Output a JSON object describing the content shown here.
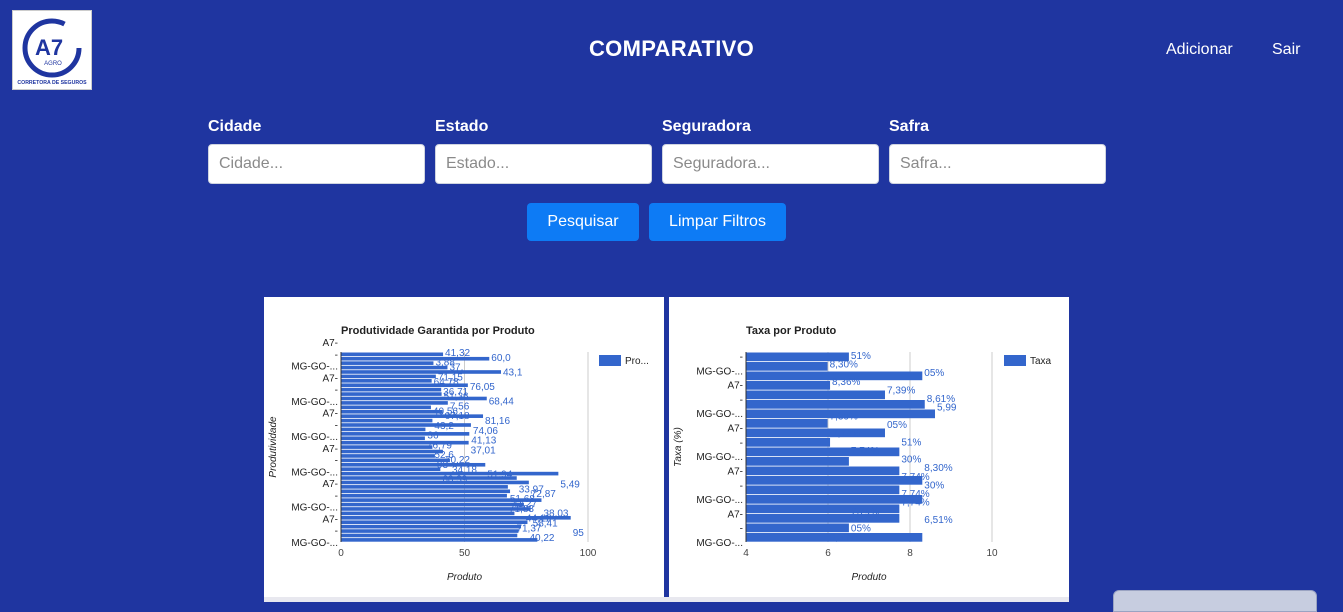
{
  "header": {
    "title": "COMPARATIVO",
    "nav": {
      "add": "Adicionar",
      "logout": "Sair"
    },
    "logo": {
      "main": "A7",
      "sub": "AGRO",
      "tagline": "CORRETORA DE SEGUROS"
    }
  },
  "filters": {
    "city": {
      "label": "Cidade",
      "placeholder": "Cidade..."
    },
    "state": {
      "label": "Estado",
      "placeholder": "Estado..."
    },
    "insurer": {
      "label": "Seguradora",
      "placeholder": "Seguradora..."
    },
    "harvest": {
      "label": "Safra",
      "placeholder": "Safra..."
    }
  },
  "actions": {
    "search": "Pesquisar",
    "clear": "Limpar Filtros"
  },
  "colors": {
    "background": "#1f35a0",
    "button": "#0d7bf5",
    "bar": "#3366cc"
  },
  "chart_data": [
    {
      "type": "bar",
      "orientation": "horizontal",
      "title": "Produtividade Garantida por Produto",
      "xlabel": "Produto",
      "ylabel": "Produtividade",
      "xlim": [
        0,
        100
      ],
      "x_ticks": [
        "0",
        "50",
        "100"
      ],
      "category_ticks": [
        "A7-",
        "-",
        "MG-GO-...",
        "A7-",
        "-",
        "MG-GO-...",
        "A7-",
        "-",
        "MG-GO-...",
        "A7-",
        "-",
        "MG-GO-...",
        "A7-",
        "-",
        "MG-GO-...",
        "A7-",
        "-",
        "MG-GO-..."
      ],
      "legend": [
        "Pro..."
      ],
      "legend_position": "right",
      "values": [
        41.32,
        60.03,
        37.43,
        43.1,
        64.78,
        38.4,
        36.71,
        51.36,
        40.56,
        40.73,
        59.01,
        43.25,
        36.41,
        41.13,
        57.5,
        37.01,
        52.6,
        34.18,
        51.94,
        33.97,
        51.68,
        37.01,
        41.27,
        38.03,
        44.11,
        58.41,
        40.22,
        88,
        71.15,
        76.05,
        67.56,
        68.44,
        67.18,
        81.16,
        74.06,
        76.79,
        70.22,
        93,
        75.49,
        72.87,
        71.83,
        71.37,
        79.5
      ],
      "visible_labels": [
        "41,32",
        "60,0",
        "3,88",
        "37,",
        "43,1",
        "71,15",
        "64,78",
        "76,05",
        "36,71",
        "51,36",
        "68,44",
        "7,56",
        "40,56",
        "67,18",
        "81,16",
        "43,2",
        "74,06",
        "36",
        "41,13",
        "76,79",
        "37,01",
        "52,6",
        "70,22",
        "93",
        "34,18",
        "51,94",
        "60,39",
        "5,49",
        "33,97",
        "72,87",
        "51,68",
        "41,27",
        "71,83",
        "38,03",
        "44,11",
        "58,41",
        "71,37",
        "95",
        "40,22"
      ]
    },
    {
      "type": "bar",
      "orientation": "horizontal",
      "title": "Taxa por Produto",
      "xlabel": "Produto",
      "ylabel": "Taxa (%)",
      "xlim": [
        4,
        10
      ],
      "x_ticks": [
        "4",
        "6",
        "8",
        "10"
      ],
      "category_ticks": [
        "-",
        "MG-GO-...",
        "A7-",
        "-",
        "MG-GO-...",
        "A7-",
        "-",
        "MG-GO-...",
        "A7-",
        "-",
        "MG-GO-...",
        "A7-",
        "-",
        "MG-GO-..."
      ],
      "legend": [
        "Taxa"
      ],
      "legend_position": "right",
      "values": [
        6.51,
        5.99,
        8.3,
        6.05,
        7.39,
        8.36,
        8.61,
        5.99,
        7.39,
        6.05,
        7.74,
        6.51,
        7.74,
        8.3,
        7.74,
        8.3,
        7.74,
        7.74,
        6.51,
        8.3
      ],
      "visible_labels": [
        "51%",
        "8,30%",
        "05%",
        "8,36%",
        "7,39%",
        "8,61%",
        "5,99",
        "7,39%",
        "05%",
        "7,74%",
        "51%",
        "7,74%",
        "30%",
        "8,30%",
        "7,74%",
        "30%",
        "7,74%",
        "7,74%",
        "7,74%",
        "6,51%",
        "05%",
        "8,30%"
      ]
    }
  ]
}
